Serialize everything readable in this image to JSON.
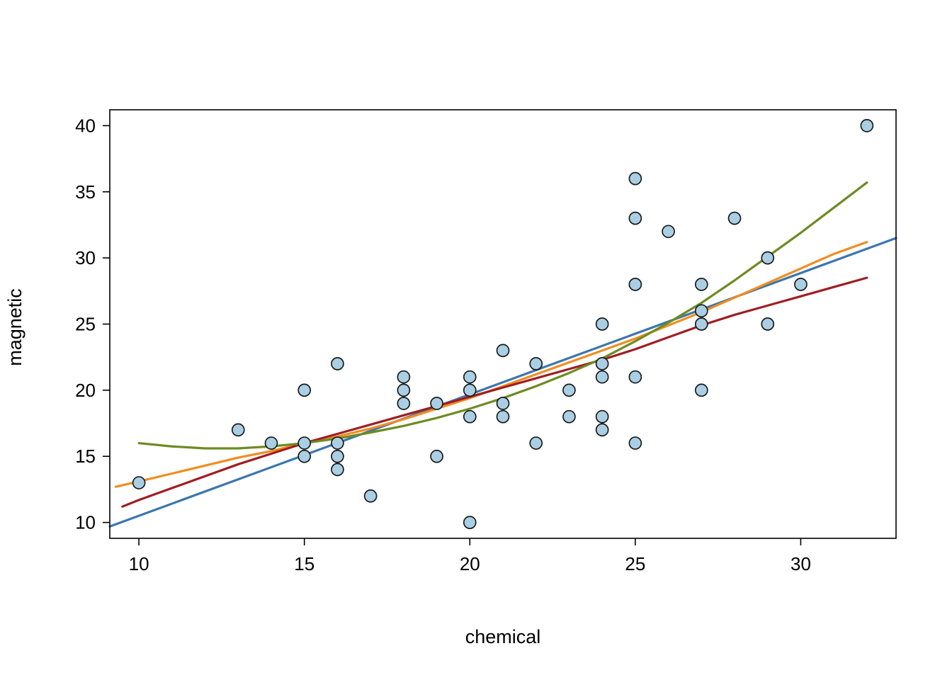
{
  "figure": {
    "background": "#ffffff"
  },
  "chart_data": {
    "type": "scatter",
    "title": "",
    "xlabel": "chemical",
    "ylabel": "magnetic",
    "xlim": [
      9.12,
      32.88
    ],
    "ylim": [
      8.8,
      41.2
    ],
    "x_ticks": [
      10,
      15,
      20,
      25,
      30
    ],
    "y_ticks": [
      10,
      15,
      20,
      25,
      30,
      35,
      40
    ],
    "grid": false,
    "legend": "none",
    "points": {
      "marker": "circle",
      "fill": "#aacfe4",
      "stroke": "#1a1a1a",
      "x": [
        10,
        13,
        14,
        15,
        15,
        15,
        16,
        16,
        16,
        16,
        17,
        18,
        18,
        18,
        19,
        19,
        20,
        20,
        20,
        20,
        21,
        21,
        21,
        22,
        22,
        23,
        23,
        24,
        24,
        24,
        24,
        24,
        25,
        25,
        25,
        25,
        25,
        26,
        27,
        27,
        27,
        27,
        28,
        29,
        29,
        30,
        32
      ],
      "y": [
        13,
        17,
        16,
        20,
        16,
        15,
        22,
        16,
        15,
        14,
        12,
        21,
        20,
        19,
        19,
        15,
        21,
        20,
        18,
        10,
        23,
        19,
        18,
        22,
        16,
        20,
        18,
        25,
        22,
        21,
        18,
        17,
        36,
        33,
        28,
        21,
        16,
        32,
        28,
        26,
        25,
        20,
        33,
        30,
        25,
        28,
        40
      ]
    },
    "lines": [
      {
        "name": "blue-linear-fit-line",
        "color": "#3c76ae",
        "x": [
          9.12,
          32.88
        ],
        "y": [
          9.7,
          31.5
        ]
      },
      {
        "name": "orange-fit-line",
        "color": "#f18d1e",
        "x": [
          9.3,
          10,
          11,
          12,
          13,
          14,
          15,
          16,
          17,
          18,
          19,
          20,
          21,
          22,
          23,
          24,
          25,
          26,
          27,
          28,
          29,
          30,
          31,
          32
        ],
        "y": [
          12.7,
          13.1,
          13.7,
          14.3,
          14.9,
          15.4,
          16.0,
          16.5,
          17.1,
          17.8,
          18.6,
          19.4,
          20.3,
          21.2,
          22.1,
          23.0,
          23.9,
          24.9,
          25.9,
          27.0,
          28.1,
          29.2,
          30.3,
          31.2
        ]
      },
      {
        "name": "dark-red-fit-line",
        "color": "#a01d22",
        "x": [
          9.5,
          10,
          11,
          12,
          13,
          14,
          15,
          16,
          17,
          18,
          19,
          20,
          21,
          22,
          23,
          24,
          25,
          26,
          27,
          28,
          29,
          30,
          31,
          32
        ],
        "y": [
          11.2,
          11.7,
          12.6,
          13.5,
          14.4,
          15.2,
          16.0,
          16.7,
          17.4,
          18.1,
          18.8,
          19.5,
          20.2,
          20.9,
          21.6,
          22.3,
          23.1,
          24.0,
          24.9,
          25.7,
          26.4,
          27.1,
          27.8,
          28.5
        ]
      },
      {
        "name": "green-curve-fit-line",
        "color": "#6d8b22",
        "x": [
          10,
          11,
          12,
          13,
          14,
          15,
          16,
          17,
          18,
          19,
          20,
          21,
          22,
          23,
          24,
          25,
          26,
          27,
          28,
          29,
          30,
          31,
          32
        ],
        "y": [
          16.0,
          15.75,
          15.6,
          15.6,
          15.75,
          16.0,
          16.35,
          16.8,
          17.3,
          17.9,
          18.6,
          19.4,
          20.3,
          21.3,
          22.4,
          23.7,
          25.1,
          26.6,
          28.3,
          30.1,
          31.9,
          33.8,
          35.7
        ]
      }
    ]
  }
}
